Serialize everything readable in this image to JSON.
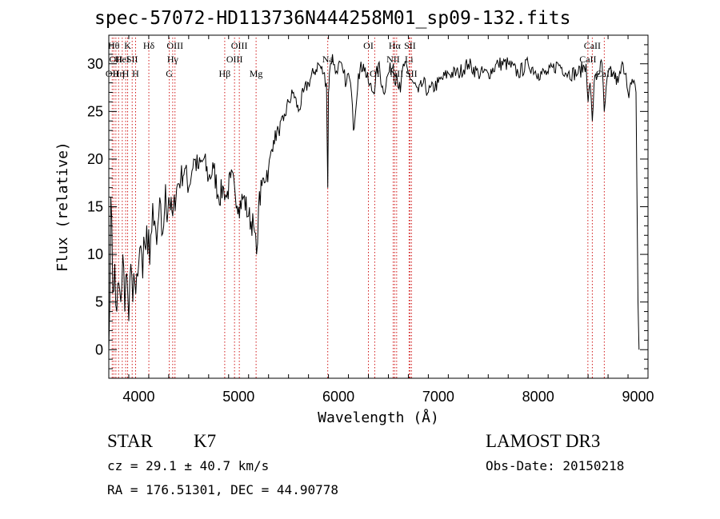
{
  "chart_data": {
    "type": "line",
    "title": "spec-57072-HD113736N444258M01_sp09-132.fits",
    "xlabel": "Wavelength (Å)",
    "ylabel": "Flux (relative)",
    "xlim": [
      3700,
      9100
    ],
    "ylim": [
      -3,
      33
    ],
    "xticks": [
      4000,
      5000,
      6000,
      7000,
      8000,
      9000
    ],
    "yticks": [
      0,
      5,
      10,
      15,
      20,
      25,
      30
    ],
    "series": [
      {
        "name": "flux",
        "x": [
          3700,
          3720,
          3740,
          3760,
          3780,
          3800,
          3820,
          3840,
          3860,
          3880,
          3900,
          3920,
          3940,
          3960,
          3980,
          4000,
          4030,
          4060,
          4090,
          4120,
          4150,
          4180,
          4200,
          4230,
          4260,
          4300,
          4340,
          4380,
          4420,
          4460,
          4500,
          4550,
          4600,
          4650,
          4700,
          4750,
          4800,
          4850,
          4880,
          4920,
          4960,
          5000,
          5050,
          5100,
          5150,
          5180,
          5200,
          5250,
          5300,
          5350,
          5400,
          5450,
          5500,
          5550,
          5600,
          5650,
          5700,
          5750,
          5800,
          5850,
          5880,
          5893,
          5900,
          5910,
          5940,
          5970,
          6000,
          6050,
          6080,
          6100,
          6130,
          6150,
          6200,
          6250,
          6300,
          6350,
          6400,
          6450,
          6500,
          6550,
          6563,
          6580,
          6620,
          6650,
          6700,
          6750,
          6800,
          6850,
          6900,
          7000,
          7100,
          7200,
          7300,
          7400,
          7500,
          7600,
          7700,
          7800,
          7900,
          8000,
          8100,
          8200,
          8300,
          8400,
          8480,
          8500,
          8520,
          8542,
          8560,
          8600,
          8640,
          8662,
          8700,
          8750,
          8800,
          8850,
          8880,
          8900,
          8950,
          8980,
          9000,
          9010
        ],
        "values": [
          0,
          16,
          6,
          9,
          4,
          7,
          5,
          10,
          4,
          8,
          3,
          9,
          5,
          7,
          8,
          9,
          10,
          11,
          10,
          12,
          13,
          11,
          14,
          12,
          15,
          16,
          14,
          17,
          18,
          19,
          17,
          20,
          19,
          20,
          18,
          19,
          16,
          17,
          16,
          18,
          17,
          15,
          16,
          14,
          13,
          10,
          15,
          18,
          19,
          22,
          23,
          24,
          26,
          27,
          25,
          27,
          28,
          29,
          30,
          29,
          28,
          17,
          27,
          29,
          31,
          29,
          30,
          29,
          28,
          29,
          27,
          23,
          29,
          30,
          28,
          27,
          30,
          27,
          29,
          30,
          28,
          29,
          27,
          30,
          29,
          28,
          27,
          28,
          27,
          28,
          29,
          29,
          30,
          29,
          29,
          30,
          30,
          29,
          30,
          29,
          29,
          30,
          29,
          29,
          30,
          26,
          28,
          24,
          28,
          29,
          30,
          25,
          29,
          29,
          28,
          30,
          29,
          27,
          28,
          27,
          5,
          0
        ]
      }
    ],
    "lines": [
      {
        "x": 3734,
        "tier": 2,
        "label": "OII"
      },
      {
        "x": 3750,
        "tier": 0,
        "label": "Hθ"
      },
      {
        "x": 3771,
        "tier": 1,
        "label": "OII"
      },
      {
        "x": 3798,
        "tier": 2,
        "label": "Hη"
      },
      {
        "x": 3835,
        "tier": 1,
        "label": "HeI"
      },
      {
        "x": 3869,
        "tier": 2,
        "label": "H"
      },
      {
        "x": 3889,
        "tier": 0,
        "label": "K"
      },
      {
        "x": 3934,
        "tier": 1,
        "label": "SII"
      },
      {
        "x": 3968,
        "tier": 2,
        "label": "H"
      },
      {
        "x": 4101,
        "tier": 0,
        "label": "Hδ"
      },
      {
        "x": 4306,
        "tier": 2,
        "label": "G"
      },
      {
        "x": 4340,
        "tier": 1,
        "label": "Hγ"
      },
      {
        "x": 4363,
        "tier": 0,
        "label": "OIII"
      },
      {
        "x": 4861,
        "tier": 2,
        "label": "Hβ"
      },
      {
        "x": 4959,
        "tier": 1,
        "label": "OIII"
      },
      {
        "x": 5007,
        "tier": 0,
        "label": "OIII"
      },
      {
        "x": 5175,
        "tier": 2,
        "label": "Mg"
      },
      {
        "x": 5893,
        "tier": 1,
        "label": "Na"
      },
      {
        "x": 6300,
        "tier": 0,
        "label": "OI"
      },
      {
        "x": 6363,
        "tier": 2,
        "label": "OI"
      },
      {
        "x": 6548,
        "tier": 1,
        "label": "NII"
      },
      {
        "x": 6563,
        "tier": 0,
        "label": "Hα"
      },
      {
        "x": 6583,
        "tier": 2,
        "label": "NII"
      },
      {
        "x": 6707,
        "tier": 1,
        "label": "Li"
      },
      {
        "x": 6716,
        "tier": 0,
        "label": "SII"
      },
      {
        "x": 6731,
        "tier": 2,
        "label": "SII"
      },
      {
        "x": 8498,
        "tier": 1,
        "label": "CaII"
      },
      {
        "x": 8542,
        "tier": 0,
        "label": "CaII"
      },
      {
        "x": 8662,
        "tier": 2,
        "label": "CaII"
      }
    ]
  },
  "info": {
    "class_label": "STAR",
    "subclass": "K7",
    "survey": "LAMOST DR3",
    "cz": "cz = 29.1 ± 40.7 km/s",
    "obs_date": "Obs-Date: 20150218",
    "coords": "RA = 176.51301, DEC =  44.90778"
  },
  "colors": {
    "line_marker": "#cc0000",
    "spectrum": "#000000",
    "axis": "#000000"
  }
}
